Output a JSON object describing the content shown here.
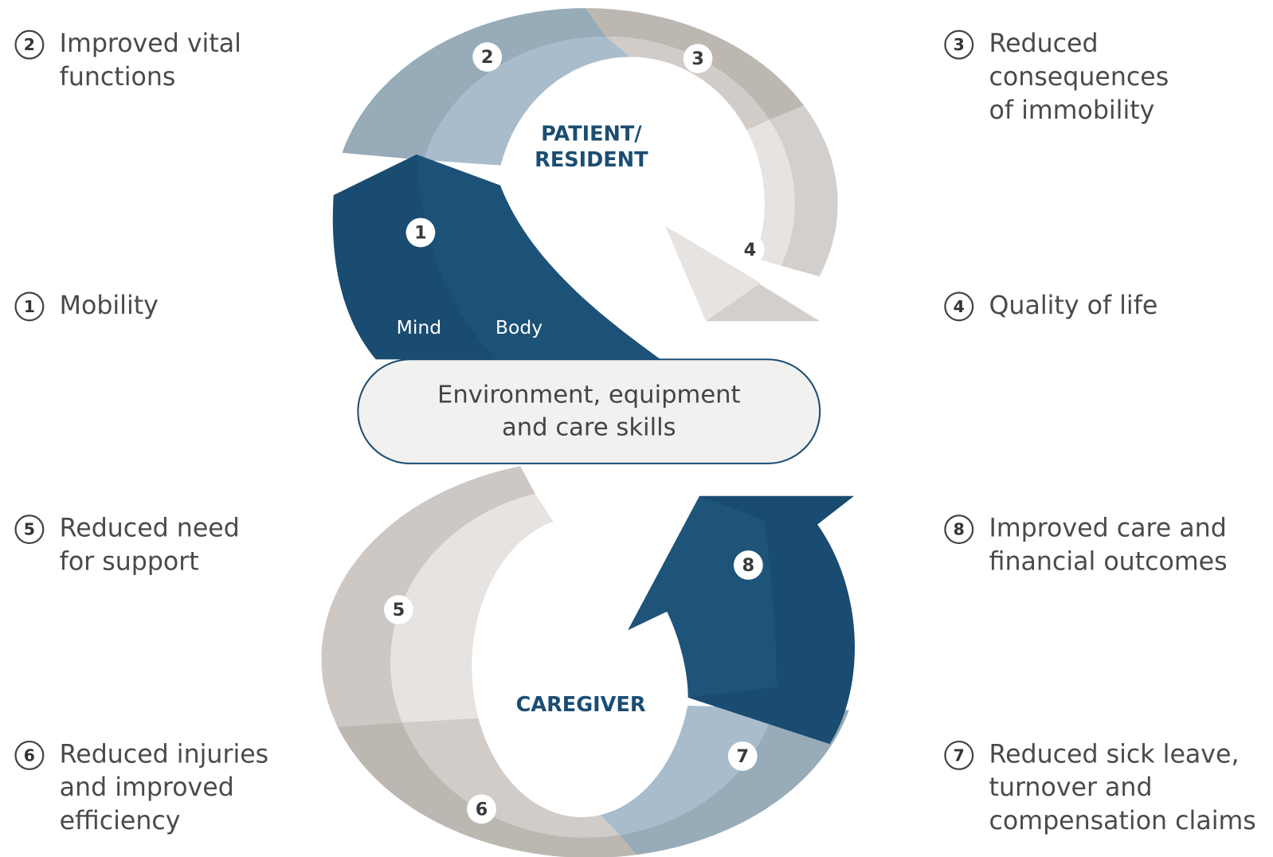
{
  "center": {
    "top": [
      "PATIENT/",
      "RESIDENT"
    ],
    "bottom": "CAREGIVER",
    "mind": "Mind",
    "body": "Body",
    "hub": [
      "Environment, equipment",
      "and care skills"
    ]
  },
  "outcomes": [
    {
      "number": 1,
      "lines": [
        "Mobility"
      ]
    },
    {
      "number": 2,
      "lines": [
        "Improved vital",
        "functions"
      ]
    },
    {
      "number": 3,
      "lines": [
        "Reduced",
        "consequences",
        "of immobility"
      ]
    },
    {
      "number": 4,
      "lines": [
        "Quality of life"
      ]
    },
    {
      "number": 5,
      "lines": [
        "Reduced need",
        "for support"
      ]
    },
    {
      "number": 6,
      "lines": [
        "Reduced injuries",
        "and improved",
        "efficiency"
      ]
    },
    {
      "number": 7,
      "lines": [
        "Reduced sick leave,",
        "turnover and",
        "compensation claims"
      ]
    },
    {
      "number": 8,
      "lines": [
        "Improved care and",
        "financial outcomes"
      ]
    }
  ]
}
